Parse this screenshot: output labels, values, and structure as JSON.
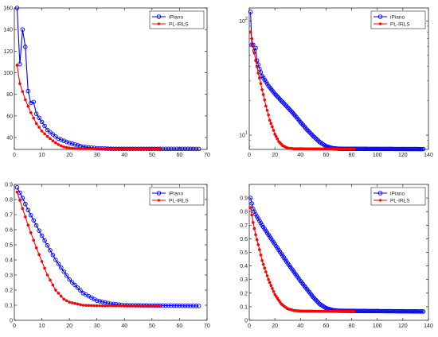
{
  "chart_data": [
    {
      "type": "line",
      "title": "",
      "xlabel": "",
      "ylabel": "",
      "xlim": [
        0,
        70
      ],
      "ylim": [
        29,
        160
      ],
      "yscale": "linear",
      "xticks": [
        0,
        10,
        20,
        30,
        40,
        50,
        60,
        70
      ],
      "yticks": [
        40,
        60,
        80,
        100,
        120,
        140,
        160
      ],
      "yticklabels": [
        "40",
        "60",
        "80",
        "100",
        "120",
        "140",
        "160"
      ],
      "legend_position": "top-right",
      "series": [
        {
          "name": "iPiano",
          "color": "#0000ff",
          "marker": "circle-open",
          "n": 67,
          "points": [
            [
              1,
              160
            ],
            [
              2,
              108
            ],
            [
              3,
              140
            ],
            [
              4,
              124
            ],
            [
              5,
              83
            ],
            [
              6,
              72
            ],
            [
              7,
              73
            ],
            [
              8,
              62
            ],
            [
              12,
              47
            ],
            [
              16,
              39
            ],
            [
              20,
              35
            ],
            [
              25,
              31.5
            ],
            [
              30,
              30.1
            ],
            [
              35,
              29.6
            ],
            [
              67,
              29.5
            ]
          ]
        },
        {
          "name": "PL-IRLS",
          "color": "#ff0000",
          "marker": "dot-filled",
          "n": 53,
          "points": [
            [
              1,
              107
            ],
            [
              2,
              90
            ],
            [
              4,
              75
            ],
            [
              6,
              63
            ],
            [
              8,
              53
            ],
            [
              10,
              46
            ],
            [
              12,
              41
            ],
            [
              14,
              37
            ],
            [
              16,
              33.5
            ],
            [
              18,
              31.3
            ],
            [
              20,
              30.3
            ],
            [
              23,
              29.7
            ],
            [
              53,
              29.5
            ]
          ]
        }
      ]
    },
    {
      "type": "line",
      "title": "",
      "xlabel": "",
      "ylabel": "",
      "xlim": [
        0,
        140
      ],
      "ylim": [
        7.5,
        130
      ],
      "yscale": "log",
      "xticks": [
        0,
        20,
        40,
        60,
        80,
        100,
        120,
        140
      ],
      "yticks": [
        10,
        100
      ],
      "yticklabels": [
        "10^1",
        "10^2"
      ],
      "legend_position": "top-right",
      "series": [
        {
          "name": "iPiano",
          "color": "#0000ff",
          "marker": "circle-open",
          "n": 136,
          "points": [
            [
              1,
              120
            ],
            [
              2,
              62
            ],
            [
              3,
              62
            ],
            [
              4,
              55
            ],
            [
              5,
              58
            ],
            [
              6,
              45
            ],
            [
              8,
              38
            ],
            [
              10,
              33
            ],
            [
              15,
              27
            ],
            [
              20,
              23
            ],
            [
              25,
              20
            ],
            [
              30,
              17.5
            ],
            [
              35,
              15.2
            ],
            [
              40,
              13
            ],
            [
              45,
              11.2
            ],
            [
              50,
              9.8
            ],
            [
              55,
              8.7
            ],
            [
              60,
              8
            ],
            [
              65,
              7.7
            ],
            [
              70,
              7.6
            ],
            [
              136,
              7.55
            ]
          ]
        },
        {
          "name": "PL-IRLS",
          "color": "#ff0000",
          "marker": "dot-filled",
          "n": 82,
          "points": [
            [
              1,
              80
            ],
            [
              3,
              60
            ],
            [
              5,
              45
            ],
            [
              7,
              35
            ],
            [
              10,
              25
            ],
            [
              13,
              18
            ],
            [
              16,
              13.5
            ],
            [
              20,
              10.2
            ],
            [
              23,
              8.8
            ],
            [
              26,
              8.1
            ],
            [
              30,
              7.7
            ],
            [
              35,
              7.6
            ],
            [
              82,
              7.55
            ]
          ]
        }
      ]
    },
    {
      "type": "line",
      "title": "",
      "xlabel": "",
      "ylabel": "",
      "xlim": [
        0,
        70
      ],
      "ylim": [
        0,
        0.9
      ],
      "yscale": "linear",
      "xticks": [
        0,
        10,
        20,
        30,
        40,
        50,
        60,
        70
      ],
      "yticks": [
        0,
        0.1,
        0.2,
        0.3,
        0.4,
        0.5,
        0.6,
        0.7,
        0.8,
        0.9
      ],
      "yticklabels": [
        "0",
        "0.1",
        "0.2",
        "0.3",
        "0.4",
        "0.5",
        "0.6",
        "0.7",
        "0.8",
        "0.9"
      ],
      "legend_position": "top-right",
      "series": [
        {
          "name": "iPiano",
          "color": "#0000ff",
          "marker": "circle-open",
          "n": 67,
          "points": [
            [
              1,
              0.88
            ],
            [
              3,
              0.81
            ],
            [
              5,
              0.73
            ],
            [
              10,
              0.56
            ],
            [
              15,
              0.4
            ],
            [
              20,
              0.27
            ],
            [
              25,
              0.18
            ],
            [
              30,
              0.13
            ],
            [
              35,
              0.11
            ],
            [
              40,
              0.1
            ],
            [
              67,
              0.095
            ]
          ]
        },
        {
          "name": "PL-IRLS",
          "color": "#ff0000",
          "marker": "dot-filled",
          "n": 53,
          "points": [
            [
              1,
              0.85
            ],
            [
              3,
              0.74
            ],
            [
              5,
              0.63
            ],
            [
              8,
              0.48
            ],
            [
              10,
              0.39
            ],
            [
              12,
              0.3
            ],
            [
              15,
              0.2
            ],
            [
              18,
              0.14
            ],
            [
              20,
              0.12
            ],
            [
              25,
              0.1
            ],
            [
              30,
              0.096
            ],
            [
              53,
              0.095
            ]
          ]
        }
      ]
    },
    {
      "type": "line",
      "title": "",
      "xlabel": "",
      "ylabel": "",
      "xlim": [
        0,
        140
      ],
      "ylim": [
        0,
        1.0
      ],
      "yscale": "linear",
      "xticks": [
        0,
        20,
        40,
        60,
        80,
        100,
        120,
        140
      ],
      "yticks": [
        0,
        0.1,
        0.2,
        0.3,
        0.4,
        0.5,
        0.6,
        0.7,
        0.8,
        0.9
      ],
      "yticklabels": [
        "0",
        "0.1",
        "0.2",
        "0.3",
        "0.4",
        "0.5",
        "0.6",
        "0.7",
        "0.8",
        "0.9"
      ],
      "legend_position": "top-right",
      "series": [
        {
          "name": "iPiano",
          "color": "#0000ff",
          "marker": "circle-open",
          "n": 136,
          "points": [
            [
              1,
              0.9
            ],
            [
              3,
              0.82
            ],
            [
              5,
              0.78
            ],
            [
              10,
              0.7
            ],
            [
              20,
              0.56
            ],
            [
              30,
              0.42
            ],
            [
              40,
              0.29
            ],
            [
              50,
              0.17
            ],
            [
              55,
              0.12
            ],
            [
              60,
              0.09
            ],
            [
              65,
              0.075
            ],
            [
              70,
              0.07
            ],
            [
              136,
              0.065
            ]
          ]
        },
        {
          "name": "PL-IRLS",
          "color": "#ff0000",
          "marker": "dot-filled",
          "n": 82,
          "points": [
            [
              1,
              0.83
            ],
            [
              3,
              0.72
            ],
            [
              5,
              0.63
            ],
            [
              8,
              0.52
            ],
            [
              10,
              0.44
            ],
            [
              15,
              0.3
            ],
            [
              20,
              0.19
            ],
            [
              25,
              0.12
            ],
            [
              30,
              0.085
            ],
            [
              35,
              0.072
            ],
            [
              40,
              0.068
            ],
            [
              82,
              0.065
            ]
          ]
        }
      ]
    }
  ]
}
